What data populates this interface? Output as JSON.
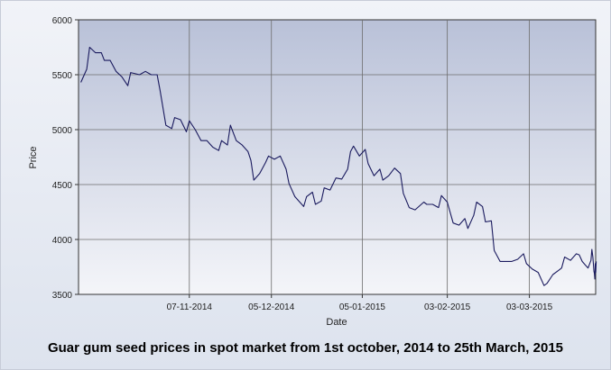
{
  "caption": "Guar gum seed prices in spot market  from 1st october, 2014 to 25th March, 2015",
  "chart_data": {
    "type": "line",
    "title": "",
    "xlabel": "Date",
    "ylabel": "Price",
    "ylim": [
      3500,
      6000
    ],
    "yticks": [
      3500,
      4000,
      4500,
      5000,
      5500,
      6000
    ],
    "xlim": [
      "2014-10-01",
      "2015-03-25"
    ],
    "xtick_labels": [
      "07-11-2014",
      "05-12-2014",
      "05-01-2015",
      "03-02-2015",
      "03-03-2015"
    ],
    "grid": true,
    "line_color": "#1a1a5e",
    "series": [
      {
        "name": "",
        "points": [
          [
            "2014-10-01",
            5430
          ],
          [
            "2014-10-03",
            5550
          ],
          [
            "2014-10-04",
            5750
          ],
          [
            "2014-10-06",
            5700
          ],
          [
            "2014-10-08",
            5700
          ],
          [
            "2014-10-09",
            5630
          ],
          [
            "2014-10-11",
            5630
          ],
          [
            "2014-10-13",
            5530
          ],
          [
            "2014-10-15",
            5480
          ],
          [
            "2014-10-17",
            5400
          ],
          [
            "2014-10-18",
            5520
          ],
          [
            "2014-10-21",
            5500
          ],
          [
            "2014-10-23",
            5530
          ],
          [
            "2014-10-25",
            5500
          ],
          [
            "2014-10-27",
            5500
          ],
          [
            "2014-10-28",
            5360
          ],
          [
            "2014-10-30",
            5040
          ],
          [
            "2014-11-01",
            5010
          ],
          [
            "2014-11-02",
            5110
          ],
          [
            "2014-11-04",
            5090
          ],
          [
            "2014-11-06",
            4980
          ],
          [
            "2014-11-07",
            5080
          ],
          [
            "2014-11-09",
            5000
          ],
          [
            "2014-11-11",
            4900
          ],
          [
            "2014-11-13",
            4900
          ],
          [
            "2014-11-15",
            4840
          ],
          [
            "2014-11-17",
            4810
          ],
          [
            "2014-11-18",
            4900
          ],
          [
            "2014-11-20",
            4860
          ],
          [
            "2014-11-21",
            5040
          ],
          [
            "2014-11-23",
            4900
          ],
          [
            "2014-11-25",
            4860
          ],
          [
            "2014-11-27",
            4800
          ],
          [
            "2014-11-28",
            4720
          ],
          [
            "2014-11-29",
            4540
          ],
          [
            "2014-12-01",
            4600
          ],
          [
            "2014-12-03",
            4700
          ],
          [
            "2014-12-04",
            4760
          ],
          [
            "2014-12-06",
            4730
          ],
          [
            "2014-12-08",
            4760
          ],
          [
            "2014-12-10",
            4640
          ],
          [
            "2014-12-11",
            4510
          ],
          [
            "2014-12-13",
            4390
          ],
          [
            "2014-12-16",
            4300
          ],
          [
            "2014-12-17",
            4390
          ],
          [
            "2014-12-19",
            4430
          ],
          [
            "2014-12-20",
            4320
          ],
          [
            "2014-12-22",
            4350
          ],
          [
            "2014-12-23",
            4470
          ],
          [
            "2014-12-25",
            4450
          ],
          [
            "2014-12-27",
            4560
          ],
          [
            "2014-12-29",
            4550
          ],
          [
            "2014-12-31",
            4640
          ],
          [
            "2015-01-01",
            4800
          ],
          [
            "2015-01-02",
            4850
          ],
          [
            "2015-01-04",
            4760
          ],
          [
            "2015-01-06",
            4820
          ],
          [
            "2015-01-07",
            4690
          ],
          [
            "2015-01-09",
            4580
          ],
          [
            "2015-01-11",
            4640
          ],
          [
            "2015-01-12",
            4540
          ],
          [
            "2015-01-14",
            4580
          ],
          [
            "2015-01-16",
            4650
          ],
          [
            "2015-01-18",
            4600
          ],
          [
            "2015-01-19",
            4420
          ],
          [
            "2015-01-21",
            4290
          ],
          [
            "2015-01-23",
            4270
          ],
          [
            "2015-01-26",
            4340
          ],
          [
            "2015-01-27",
            4320
          ],
          [
            "2015-01-29",
            4320
          ],
          [
            "2015-01-31",
            4290
          ],
          [
            "2015-02-01",
            4400
          ],
          [
            "2015-02-03",
            4340
          ],
          [
            "2015-02-05",
            4150
          ],
          [
            "2015-02-07",
            4130
          ],
          [
            "2015-02-09",
            4190
          ],
          [
            "2015-02-10",
            4100
          ],
          [
            "2015-02-12",
            4220
          ],
          [
            "2015-02-13",
            4340
          ],
          [
            "2015-02-15",
            4300
          ],
          [
            "2015-02-16",
            4160
          ],
          [
            "2015-02-18",
            4170
          ],
          [
            "2015-02-19",
            3900
          ],
          [
            "2015-02-21",
            3800
          ],
          [
            "2015-02-23",
            3800
          ],
          [
            "2015-02-25",
            3800
          ],
          [
            "2015-02-27",
            3820
          ],
          [
            "2015-03-01",
            3870
          ],
          [
            "2015-03-02",
            3780
          ],
          [
            "2015-03-04",
            3730
          ],
          [
            "2015-03-06",
            3700
          ],
          [
            "2015-03-08",
            3580
          ],
          [
            "2015-03-09",
            3600
          ],
          [
            "2015-03-11",
            3680
          ],
          [
            "2015-03-13",
            3720
          ],
          [
            "2015-03-14",
            3740
          ],
          [
            "2015-03-15",
            3840
          ],
          [
            "2015-03-17",
            3810
          ],
          [
            "2015-03-19",
            3870
          ],
          [
            "2015-03-20",
            3860
          ],
          [
            "2015-03-21",
            3800
          ],
          [
            "2015-03-22",
            3770
          ],
          [
            "2015-03-23",
            3740
          ],
          [
            "2015-03-24",
            3810
          ],
          [
            "2015-03-24",
            3910
          ],
          [
            "2015-03-24",
            3840
          ],
          [
            "2015-03-25",
            3710
          ],
          [
            "2015-03-25",
            3690
          ],
          [
            "2015-03-25",
            3640
          ],
          [
            "2015-03-25",
            3780
          ],
          [
            "2015-03-25",
            3700
          ],
          [
            "2015-03-25",
            3800
          ]
        ]
      }
    ]
  }
}
